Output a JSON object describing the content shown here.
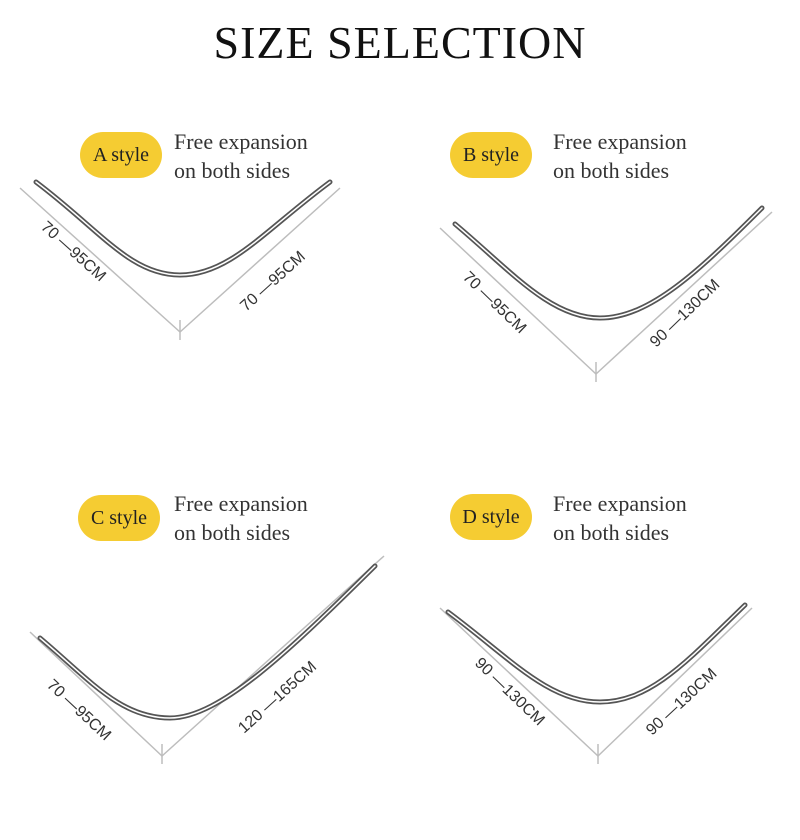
{
  "title": "SIZE SELECTION",
  "styles": [
    {
      "badge": "A style",
      "desc_line1": "Free expansion",
      "desc_line2": "on both sides",
      "left_range": "70 —95CM",
      "right_range": "70 —95CM"
    },
    {
      "badge": "B style",
      "desc_line1": "Free expansion",
      "desc_line2": "on both sides",
      "left_range": "70 —95CM",
      "right_range": "90 —130CM"
    },
    {
      "badge": "C style",
      "desc_line1": "Free expansion",
      "desc_line2": "on both sides",
      "left_range": "70 —95CM",
      "right_range": "120 —165CM"
    },
    {
      "badge": "D style",
      "desc_line1": "Free expansion",
      "desc_line2": "on both sides",
      "left_range": "90 —130CM",
      "right_range": "90 —130CM"
    }
  ],
  "colors": {
    "badge": "#f5cc32",
    "rail": "#555555",
    "dimension_line": "#bdbdbd"
  }
}
